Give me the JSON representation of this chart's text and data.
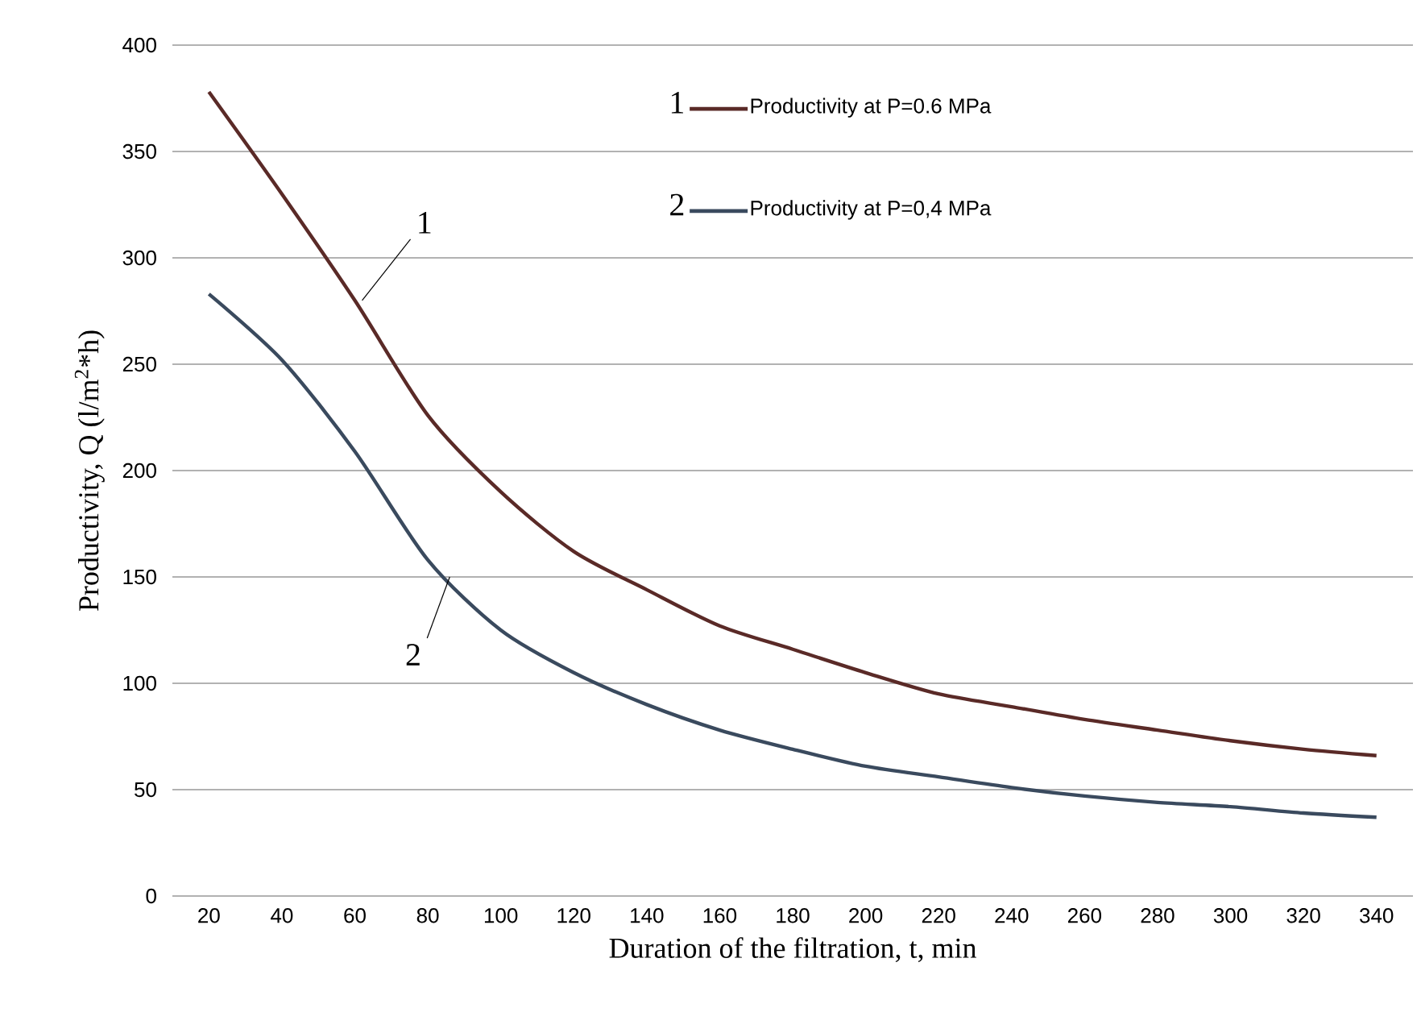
{
  "chart_data": {
    "type": "line",
    "xlabel": "Duration of the filtration, t, min",
    "ylabel": "Productivity, Q (l/m$^{2}$*h)",
    "x": [
      20,
      40,
      60,
      80,
      100,
      120,
      140,
      160,
      180,
      200,
      220,
      240,
      260,
      280,
      300,
      320,
      340
    ],
    "series": [
      {
        "name": "Productivity at P=0.6 MPa",
        "color": "#5a2a27",
        "values": [
          378,
          330,
          280,
          226,
          190,
          162,
          144,
          127,
          116,
          105,
          95,
          89,
          83,
          78,
          73,
          69,
          66
        ]
      },
      {
        "name": "Productivity at P=0,4 MPa",
        "color": "#3a4a5e",
        "values": [
          283,
          252,
          209,
          158,
          125,
          105,
          90,
          78,
          69,
          61,
          56,
          51,
          47,
          44,
          42,
          39,
          37
        ]
      }
    ],
    "annotations": [
      {
        "text": "1",
        "x": 62,
        "y": 280
      },
      {
        "text": "2",
        "x": 86,
        "y": 150
      }
    ],
    "xlim": [
      10,
      350
    ],
    "ylim": [
      0,
      400
    ],
    "xticks": [
      20,
      40,
      60,
      80,
      100,
      120,
      140,
      160,
      180,
      200,
      220,
      240,
      260,
      280,
      300,
      320,
      340
    ],
    "yticks": [
      0,
      50,
      100,
      150,
      200,
      250,
      300,
      350,
      400
    ],
    "grid": "y",
    "legend": "top right",
    "line_style": "solid",
    "marker": "none"
  }
}
